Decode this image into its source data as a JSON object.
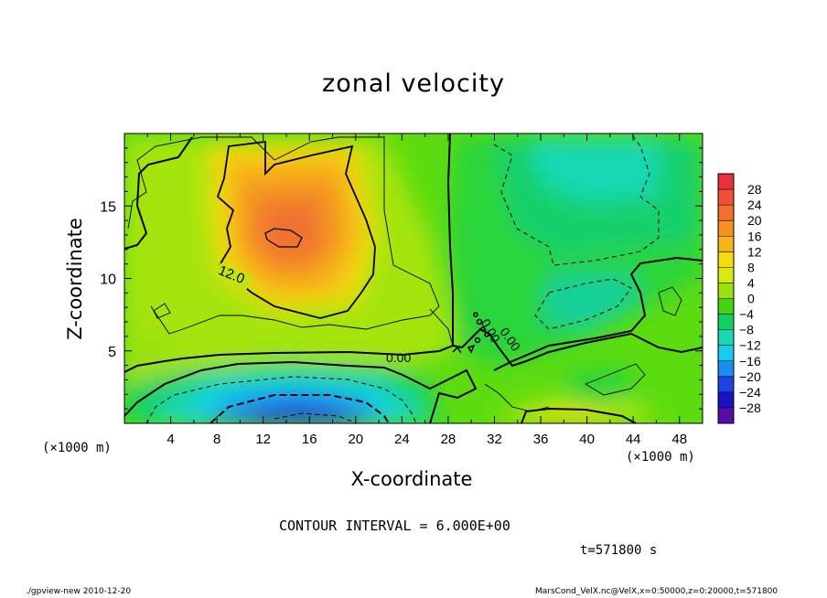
{
  "chart_data": {
    "type": "heatmap",
    "title": "zonal velocity",
    "xlabel": "X-coordinate",
    "ylabel": "Z-coordinate",
    "x_unit": "(×1000 m)",
    "xlim": [
      0,
      50
    ],
    "ylim": [
      0,
      20
    ],
    "x_ticks": [
      "4",
      "8",
      "12",
      "16",
      "20",
      "24",
      "28",
      "32",
      "36",
      "40",
      "44",
      "48"
    ],
    "y_ticks": [
      "5",
      "10",
      "15"
    ],
    "contour_labels": [
      "12.0",
      "0.00",
      "0.00",
      "0.00"
    ],
    "colorbar": {
      "ticks": [
        "28",
        "24",
        "20",
        "16",
        "12",
        "8",
        "4",
        "0",
        "−4",
        "−8",
        "−12",
        "−16",
        "−20",
        "−24",
        "−28"
      ],
      "colors": [
        "#e8303e",
        "#f0503a",
        "#f07030",
        "#f49022",
        "#f6b418",
        "#f4dc10",
        "#d8ea10",
        "#9ce010",
        "#44d410",
        "#14d060",
        "#18d8b4",
        "#18ccf0",
        "#1c8ef0",
        "#1c44e0",
        "#1c10c4",
        "#5a0ca8"
      ],
      "bounds": [
        "30",
        "26",
        "22",
        "18",
        "14",
        "10",
        "6",
        "2",
        "−2",
        "−6",
        "−10",
        "−14",
        "−18",
        "−22",
        "−26",
        "−30"
      ]
    },
    "regions": [
      {
        "name": "positive maximum",
        "x": 14,
        "z": 13,
        "value": 18
      },
      {
        "name": "negative minimum",
        "x": 16,
        "z": 1,
        "value": -22
      },
      {
        "name": "upper-right minimum",
        "x": 41,
        "z": 17,
        "value": -9
      },
      {
        "name": "near-surface maximum",
        "x": 38,
        "z": 0.3,
        "value": 12
      }
    ]
  },
  "text": {
    "contour_interval": "CONTOUR INTERVAL = 6.000E+00",
    "time": "t=571800 s",
    "footer_left": "./gpview-new  2010-12-20",
    "footer_right": "MarsCond_VelX.nc@VelX,x=0:50000,z=0:20000,t=571800"
  }
}
